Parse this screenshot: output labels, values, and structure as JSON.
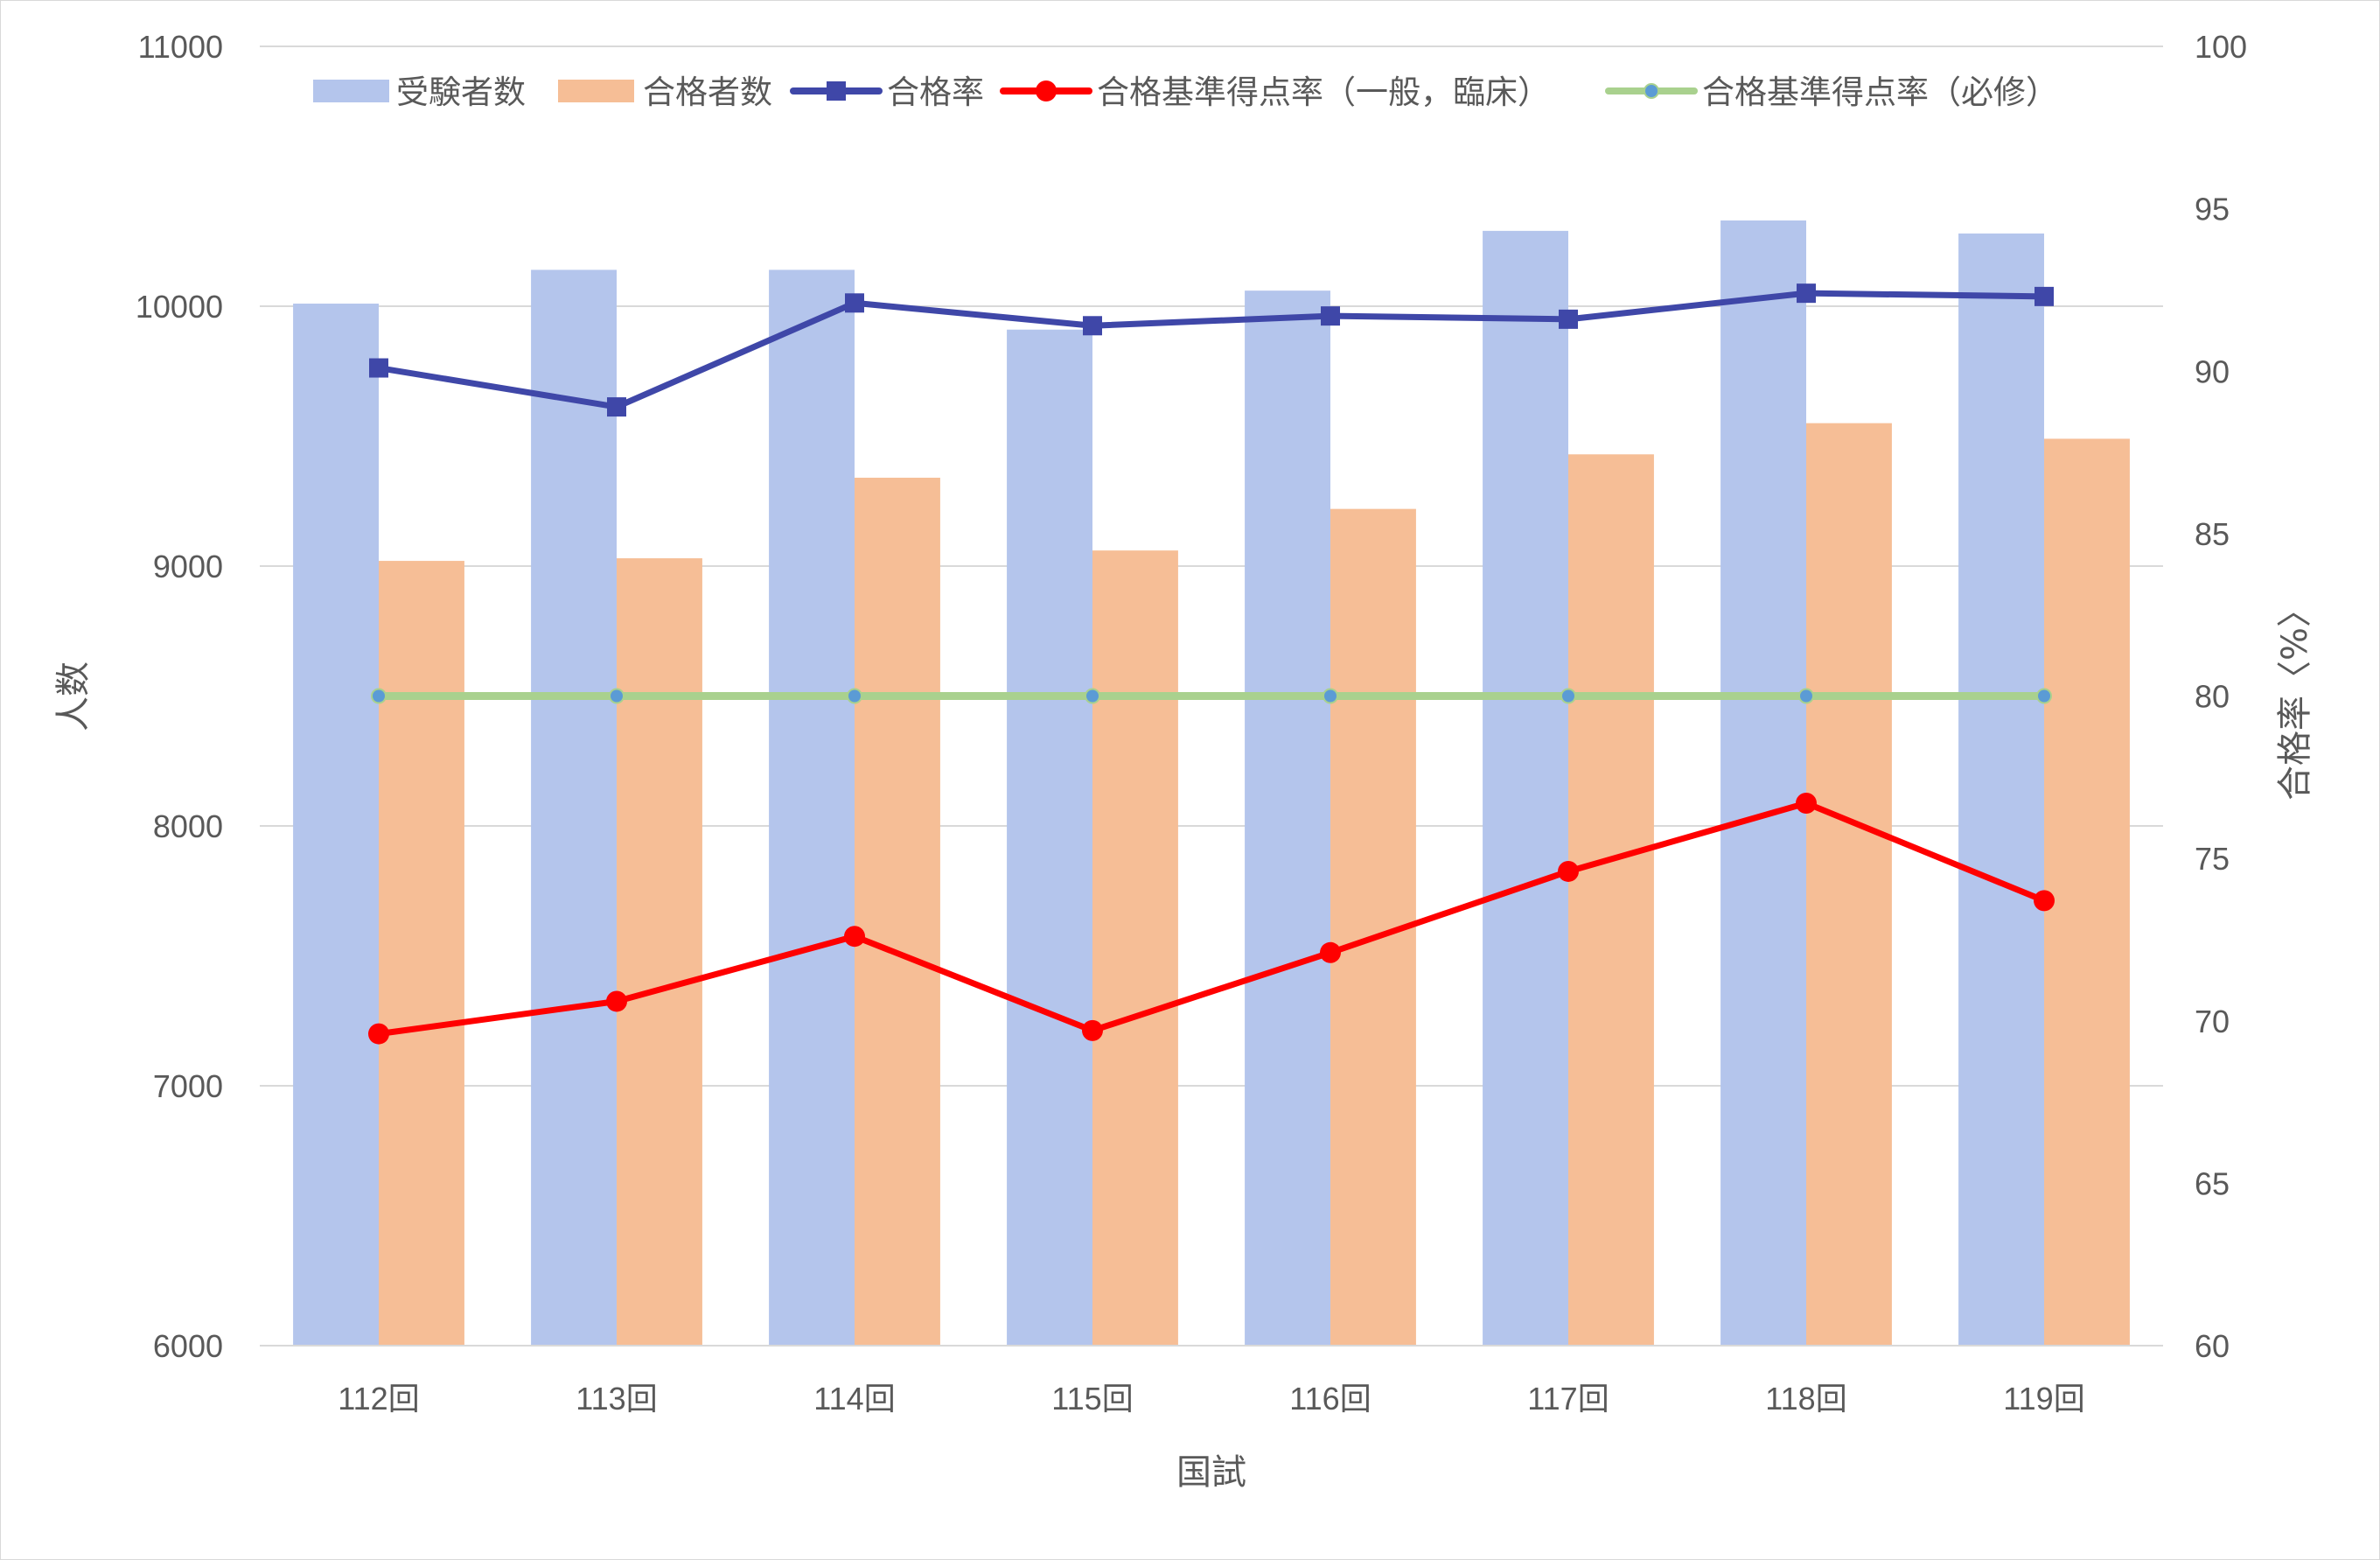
{
  "chart_data": {
    "type": "bar",
    "categories": [
      "112回",
      "113回",
      "114回",
      "115回",
      "116回",
      "117回",
      "118回",
      "119回"
    ],
    "xlabel": "国試",
    "ylabel": "人数",
    "y2label": "合格率〈%〉",
    "ylim": [
      6000,
      11000
    ],
    "y2lim": [
      60,
      100
    ],
    "yticks": [
      "6000",
      "7000",
      "8000",
      "9000",
      "10000",
      "11000"
    ],
    "y2ticks": [
      "60",
      "65",
      "70",
      "75",
      "80",
      "85",
      "90",
      "95",
      "100"
    ],
    "grid": true,
    "legend_position": "top",
    "series": [
      {
        "name": "受験者数",
        "kind": "bar",
        "axis": "left",
        "color": "#b4c5ec",
        "values": [
          10010,
          10140,
          10140,
          9910,
          10060,
          10290,
          10330,
          10280
        ]
      },
      {
        "name": "合格者数",
        "kind": "bar",
        "axis": "left",
        "color": "#f6be96",
        "values": [
          9020,
          9030,
          9340,
          9060,
          9220,
          9430,
          9550,
          9490
        ]
      },
      {
        "name": "合格率",
        "kind": "line",
        "axis": "right",
        "color": "#3f47a8",
        "marker": "square",
        "values": [
          90.1,
          88.9,
          92.1,
          91.4,
          91.7,
          91.6,
          92.4,
          92.3
        ]
      },
      {
        "name": "合格基準得点率（一般，臨床）",
        "kind": "line",
        "axis": "right",
        "color": "#ff0000",
        "marker": "circle",
        "values": [
          69.6,
          70.6,
          72.6,
          69.7,
          72.1,
          74.6,
          76.7,
          73.7
        ]
      },
      {
        "name": "合格基準得点率（必修）",
        "kind": "line",
        "axis": "right",
        "color": "#a9d18e",
        "marker": "dot",
        "marker_color": "#5b9bd5",
        "values": [
          80,
          80,
          80,
          80,
          80,
          80,
          80,
          80
        ]
      }
    ]
  }
}
